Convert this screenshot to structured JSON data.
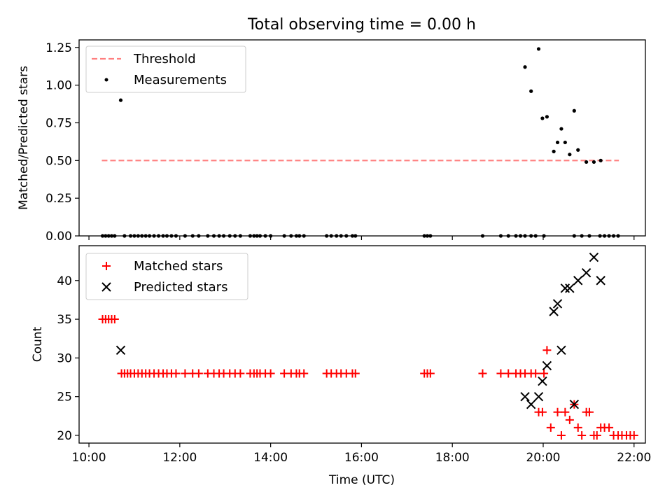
{
  "chart_data": [
    {
      "type": "scatter",
      "title": "Total observing time = 0.00 h",
      "xlabel": "",
      "ylabel": "Matched/Predicted stars",
      "x_range": [
        "09:47",
        "22:15"
      ],
      "ylim": [
        0,
        1.3
      ],
      "yticks": [
        0.0,
        0.25,
        0.5,
        0.75,
        1.0,
        1.25
      ],
      "ytick_labels": [
        "0.00",
        "0.25",
        "0.50",
        "0.75",
        "1.00",
        "1.25"
      ],
      "grid": false,
      "legend_position": "upper-left",
      "threshold": {
        "name": "Threshold",
        "value": 0.5,
        "x_start": "10:17",
        "x_end": "21:40",
        "color": "#ff7f7f",
        "style": "dashed"
      },
      "series": [
        {
          "name": "Measurements",
          "color": "#000000",
          "marker": "dot",
          "points": [
            [
              "10:18",
              0
            ],
            [
              "10:22",
              0
            ],
            [
              "10:26",
              0
            ],
            [
              "10:30",
              0
            ],
            [
              "10:34",
              0
            ],
            [
              "10:42",
              0.9
            ],
            [
              "10:47",
              0
            ],
            [
              "10:55",
              0
            ],
            [
              "11:00",
              0
            ],
            [
              "11:05",
              0
            ],
            [
              "11:10",
              0
            ],
            [
              "11:15",
              0
            ],
            [
              "11:20",
              0
            ],
            [
              "11:26",
              0
            ],
            [
              "11:32",
              0
            ],
            [
              "11:38",
              0
            ],
            [
              "11:43",
              0
            ],
            [
              "11:49",
              0
            ],
            [
              "11:55",
              0
            ],
            [
              "12:07",
              0
            ],
            [
              "12:17",
              0
            ],
            [
              "12:25",
              0
            ],
            [
              "12:37",
              0
            ],
            [
              "12:45",
              0
            ],
            [
              "12:52",
              0
            ],
            [
              "12:58",
              0
            ],
            [
              "13:06",
              0
            ],
            [
              "13:13",
              0
            ],
            [
              "13:20",
              0
            ],
            [
              "13:33",
              0
            ],
            [
              "13:38",
              0
            ],
            [
              "13:42",
              0
            ],
            [
              "13:46",
              0
            ],
            [
              "13:53",
              0
            ],
            [
              "14:00",
              0
            ],
            [
              "14:18",
              0
            ],
            [
              "14:27",
              0
            ],
            [
              "14:34",
              0
            ],
            [
              "14:38",
              0
            ],
            [
              "14:44",
              0
            ],
            [
              "15:14",
              0
            ],
            [
              "15:20",
              0
            ],
            [
              "15:27",
              0
            ],
            [
              "15:33",
              0
            ],
            [
              "15:40",
              0
            ],
            [
              "15:48",
              0
            ],
            [
              "15:52",
              0
            ],
            [
              "17:23",
              0
            ],
            [
              "17:27",
              0
            ],
            [
              "17:31",
              0
            ],
            [
              "18:40",
              0
            ],
            [
              "19:04",
              0
            ],
            [
              "19:14",
              0
            ],
            [
              "19:24",
              0
            ],
            [
              "19:30",
              0
            ],
            [
              "19:36",
              0
            ],
            [
              "19:44",
              0
            ],
            [
              "19:50",
              0
            ],
            [
              "20:01",
              0
            ],
            [
              "19:36",
              1.12
            ],
            [
              "19:44",
              0.96
            ],
            [
              "19:54",
              1.24
            ],
            [
              "19:59",
              0.78
            ],
            [
              "20:05",
              0.79
            ],
            [
              "20:14",
              0.56
            ],
            [
              "20:19",
              0.62
            ],
            [
              "20:24",
              0.71
            ],
            [
              "20:29",
              0.62
            ],
            [
              "20:35",
              0.54
            ],
            [
              "20:41",
              0.83
            ],
            [
              "20:46",
              0.57
            ],
            [
              "20:41",
              0
            ],
            [
              "20:51",
              0
            ],
            [
              "21:01",
              0
            ],
            [
              "20:57",
              0.49
            ],
            [
              "21:07",
              0.49
            ],
            [
              "21:15",
              0
            ],
            [
              "21:21",
              0
            ],
            [
              "21:27",
              0
            ],
            [
              "21:33",
              0
            ],
            [
              "21:39",
              0
            ],
            [
              "21:16",
              0.5
            ]
          ]
        }
      ]
    },
    {
      "type": "scatter",
      "title": "",
      "xlabel": "Time (UTC)",
      "ylabel": "Count",
      "x_range": [
        "09:47",
        "22:15"
      ],
      "xticks": [
        "10:00",
        "12:00",
        "14:00",
        "16:00",
        "18:00",
        "20:00",
        "22:00"
      ],
      "ylim": [
        19,
        44.5
      ],
      "yticks": [
        20,
        25,
        30,
        35,
        40
      ],
      "grid": false,
      "legend_position": "upper-left",
      "series": [
        {
          "name": "Matched stars",
          "color": "#ff0000",
          "marker": "plus",
          "points": [
            [
              "10:18",
              35
            ],
            [
              "10:22",
              35
            ],
            [
              "10:26",
              35
            ],
            [
              "10:30",
              35
            ],
            [
              "10:34",
              35
            ],
            [
              "10:43",
              28
            ],
            [
              "10:47",
              28
            ],
            [
              "10:51",
              28
            ],
            [
              "10:55",
              28
            ],
            [
              "11:00",
              28
            ],
            [
              "11:05",
              28
            ],
            [
              "11:10",
              28
            ],
            [
              "11:15",
              28
            ],
            [
              "11:20",
              28
            ],
            [
              "11:26",
              28
            ],
            [
              "11:32",
              28
            ],
            [
              "11:38",
              28
            ],
            [
              "11:43",
              28
            ],
            [
              "11:49",
              28
            ],
            [
              "11:55",
              28
            ],
            [
              "12:07",
              28
            ],
            [
              "12:17",
              28
            ],
            [
              "12:25",
              28
            ],
            [
              "12:37",
              28
            ],
            [
              "12:45",
              28
            ],
            [
              "12:52",
              28
            ],
            [
              "12:58",
              28
            ],
            [
              "13:06",
              28
            ],
            [
              "13:13",
              28
            ],
            [
              "13:20",
              28
            ],
            [
              "13:33",
              28
            ],
            [
              "13:38",
              28
            ],
            [
              "13:42",
              28
            ],
            [
              "13:46",
              28
            ],
            [
              "13:53",
              28
            ],
            [
              "14:00",
              28
            ],
            [
              "14:18",
              28
            ],
            [
              "14:27",
              28
            ],
            [
              "14:34",
              28
            ],
            [
              "14:38",
              28
            ],
            [
              "14:44",
              28
            ],
            [
              "15:14",
              28
            ],
            [
              "15:20",
              28
            ],
            [
              "15:27",
              28
            ],
            [
              "15:33",
              28
            ],
            [
              "15:40",
              28
            ],
            [
              "15:48",
              28
            ],
            [
              "15:52",
              28
            ],
            [
              "17:23",
              28
            ],
            [
              "17:27",
              28
            ],
            [
              "17:31",
              28
            ],
            [
              "18:40",
              28
            ],
            [
              "19:04",
              28
            ],
            [
              "19:14",
              28
            ],
            [
              "19:24",
              28
            ],
            [
              "19:30",
              28
            ],
            [
              "19:36",
              28
            ],
            [
              "19:44",
              28
            ],
            [
              "19:50",
              28
            ],
            [
              "20:01",
              28
            ],
            [
              "19:54",
              23
            ],
            [
              "19:59",
              23
            ],
            [
              "20:05",
              31
            ],
            [
              "20:10",
              21
            ],
            [
              "20:19",
              23
            ],
            [
              "20:24",
              20
            ],
            [
              "20:29",
              23
            ],
            [
              "20:35",
              22
            ],
            [
              "20:41",
              24
            ],
            [
              "20:46",
              21
            ],
            [
              "20:51",
              20
            ],
            [
              "20:57",
              23
            ],
            [
              "21:01",
              23
            ],
            [
              "21:07",
              20
            ],
            [
              "21:11",
              20
            ],
            [
              "21:16",
              21
            ],
            [
              "21:21",
              21
            ],
            [
              "21:27",
              21
            ],
            [
              "21:33",
              20
            ],
            [
              "21:39",
              20
            ],
            [
              "21:44",
              20
            ],
            [
              "21:50",
              20
            ],
            [
              "21:55",
              20
            ],
            [
              "22:00",
              20
            ]
          ]
        },
        {
          "name": "Predicted stars",
          "color": "#000000",
          "marker": "x",
          "points": [
            [
              "10:42",
              31
            ],
            [
              "19:36",
              25
            ],
            [
              "19:44",
              24
            ],
            [
              "19:54",
              25
            ],
            [
              "19:59",
              27
            ],
            [
              "20:05",
              29
            ],
            [
              "20:14",
              36
            ],
            [
              "20:19",
              37
            ],
            [
              "20:24",
              31
            ],
            [
              "20:29",
              39
            ],
            [
              "20:35",
              39
            ],
            [
              "20:41",
              24
            ],
            [
              "20:46",
              40
            ],
            [
              "20:57",
              41
            ],
            [
              "21:07",
              43
            ],
            [
              "21:16",
              40
            ]
          ]
        }
      ]
    }
  ]
}
